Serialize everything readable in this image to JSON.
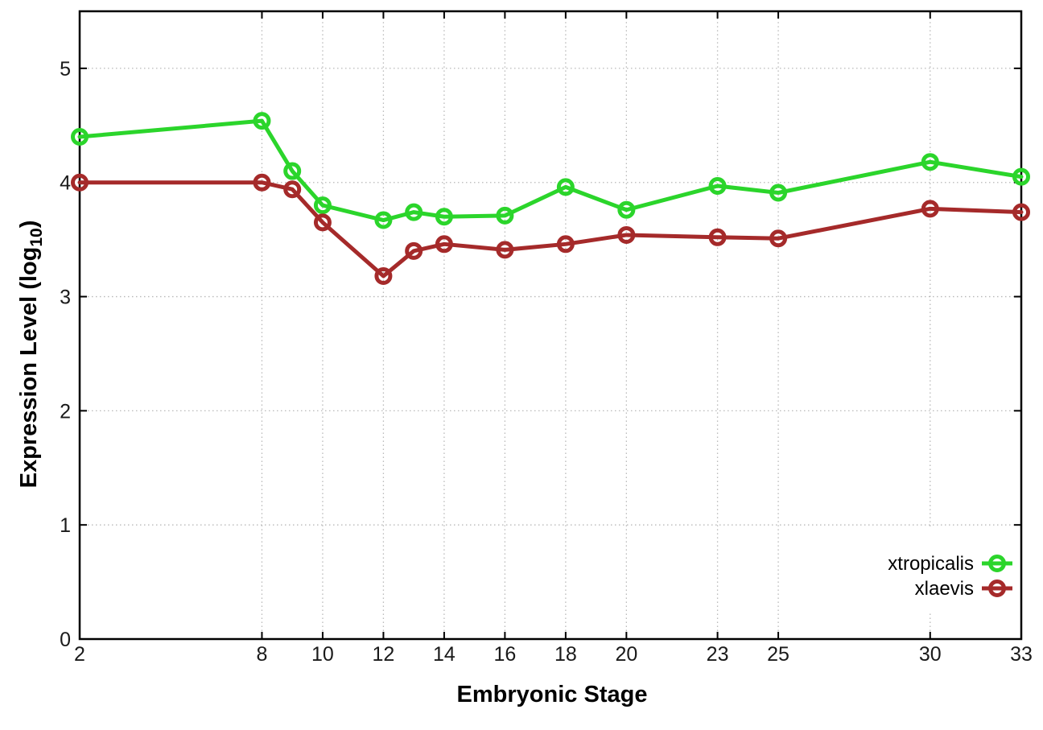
{
  "chart_data": {
    "type": "line",
    "title": "",
    "xlabel": "Embryonic Stage",
    "ylabel": "Expression Level (log10)",
    "ylabel_parts": {
      "main": "Expression Level (log",
      "sub": "10",
      "end": ")"
    },
    "x": [
      2,
      8,
      9,
      10,
      12,
      13,
      14,
      16,
      18,
      20,
      23,
      25,
      30,
      33
    ],
    "series": [
      {
        "name": "xtropicalis",
        "color": "#2bd52b",
        "values": [
          4.4,
          4.54,
          4.1,
          3.8,
          3.67,
          3.74,
          3.7,
          3.71,
          3.96,
          3.76,
          3.97,
          3.91,
          4.18,
          4.05
        ]
      },
      {
        "name": "xlaevis",
        "color": "#a52a2a",
        "values": [
          4.0,
          4.0,
          3.94,
          3.65,
          3.18,
          3.4,
          3.46,
          3.41,
          3.46,
          3.54,
          3.52,
          3.51,
          3.77,
          3.74
        ]
      }
    ],
    "xticks": [
      2,
      8,
      10,
      12,
      14,
      16,
      18,
      20,
      23,
      25,
      30,
      33
    ],
    "yticks": [
      0,
      1,
      2,
      3,
      4,
      5
    ],
    "xlim": [
      2,
      33
    ],
    "ylim": [
      0,
      5.5
    ],
    "grid": true,
    "legend_position": "bottom-right",
    "marker": "open-circle",
    "background_color": "#ffffff",
    "grid_color": "#b8b8b8"
  }
}
